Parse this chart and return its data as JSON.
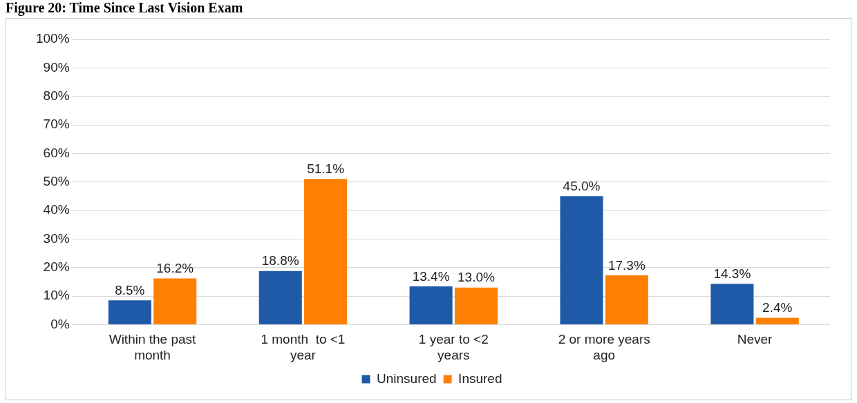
{
  "chart_data": {
    "type": "bar",
    "title": "Figure 20: Time Since Last Vision Exam",
    "categories": [
      "Within the past month",
      "1 month  to <1 year",
      "1 year to <2 years",
      "2 or more years ago",
      "Never"
    ],
    "series": [
      {
        "name": "Uninsured",
        "color": "#1f5aa8",
        "values": [
          8.5,
          18.8,
          13.4,
          45.0,
          14.3
        ],
        "value_labels": [
          "8.5%",
          "18.8%",
          "13.4%",
          "45.0%",
          "14.3%"
        ]
      },
      {
        "name": "Insured",
        "color": "#ff8000",
        "values": [
          16.2,
          51.1,
          13.0,
          17.3,
          2.4
        ],
        "value_labels": [
          "16.2%",
          "51.1%",
          "13.0%",
          "17.3%",
          "2.4%"
        ]
      }
    ],
    "ylim": [
      0,
      100
    ],
    "yticks": [
      {
        "value": 0,
        "label": "0%"
      },
      {
        "value": 10,
        "label": "10%"
      },
      {
        "value": 20,
        "label": "20%"
      },
      {
        "value": 30,
        "label": "30%"
      },
      {
        "value": 40,
        "label": "40%"
      },
      {
        "value": 50,
        "label": "50%"
      },
      {
        "value": 60,
        "label": "60%"
      },
      {
        "value": 70,
        "label": "70%"
      },
      {
        "value": 80,
        "label": "80%"
      },
      {
        "value": 90,
        "label": "90%"
      },
      {
        "value": 100,
        "label": "100%"
      }
    ],
    "grid": "y",
    "legend": "bottom"
  }
}
